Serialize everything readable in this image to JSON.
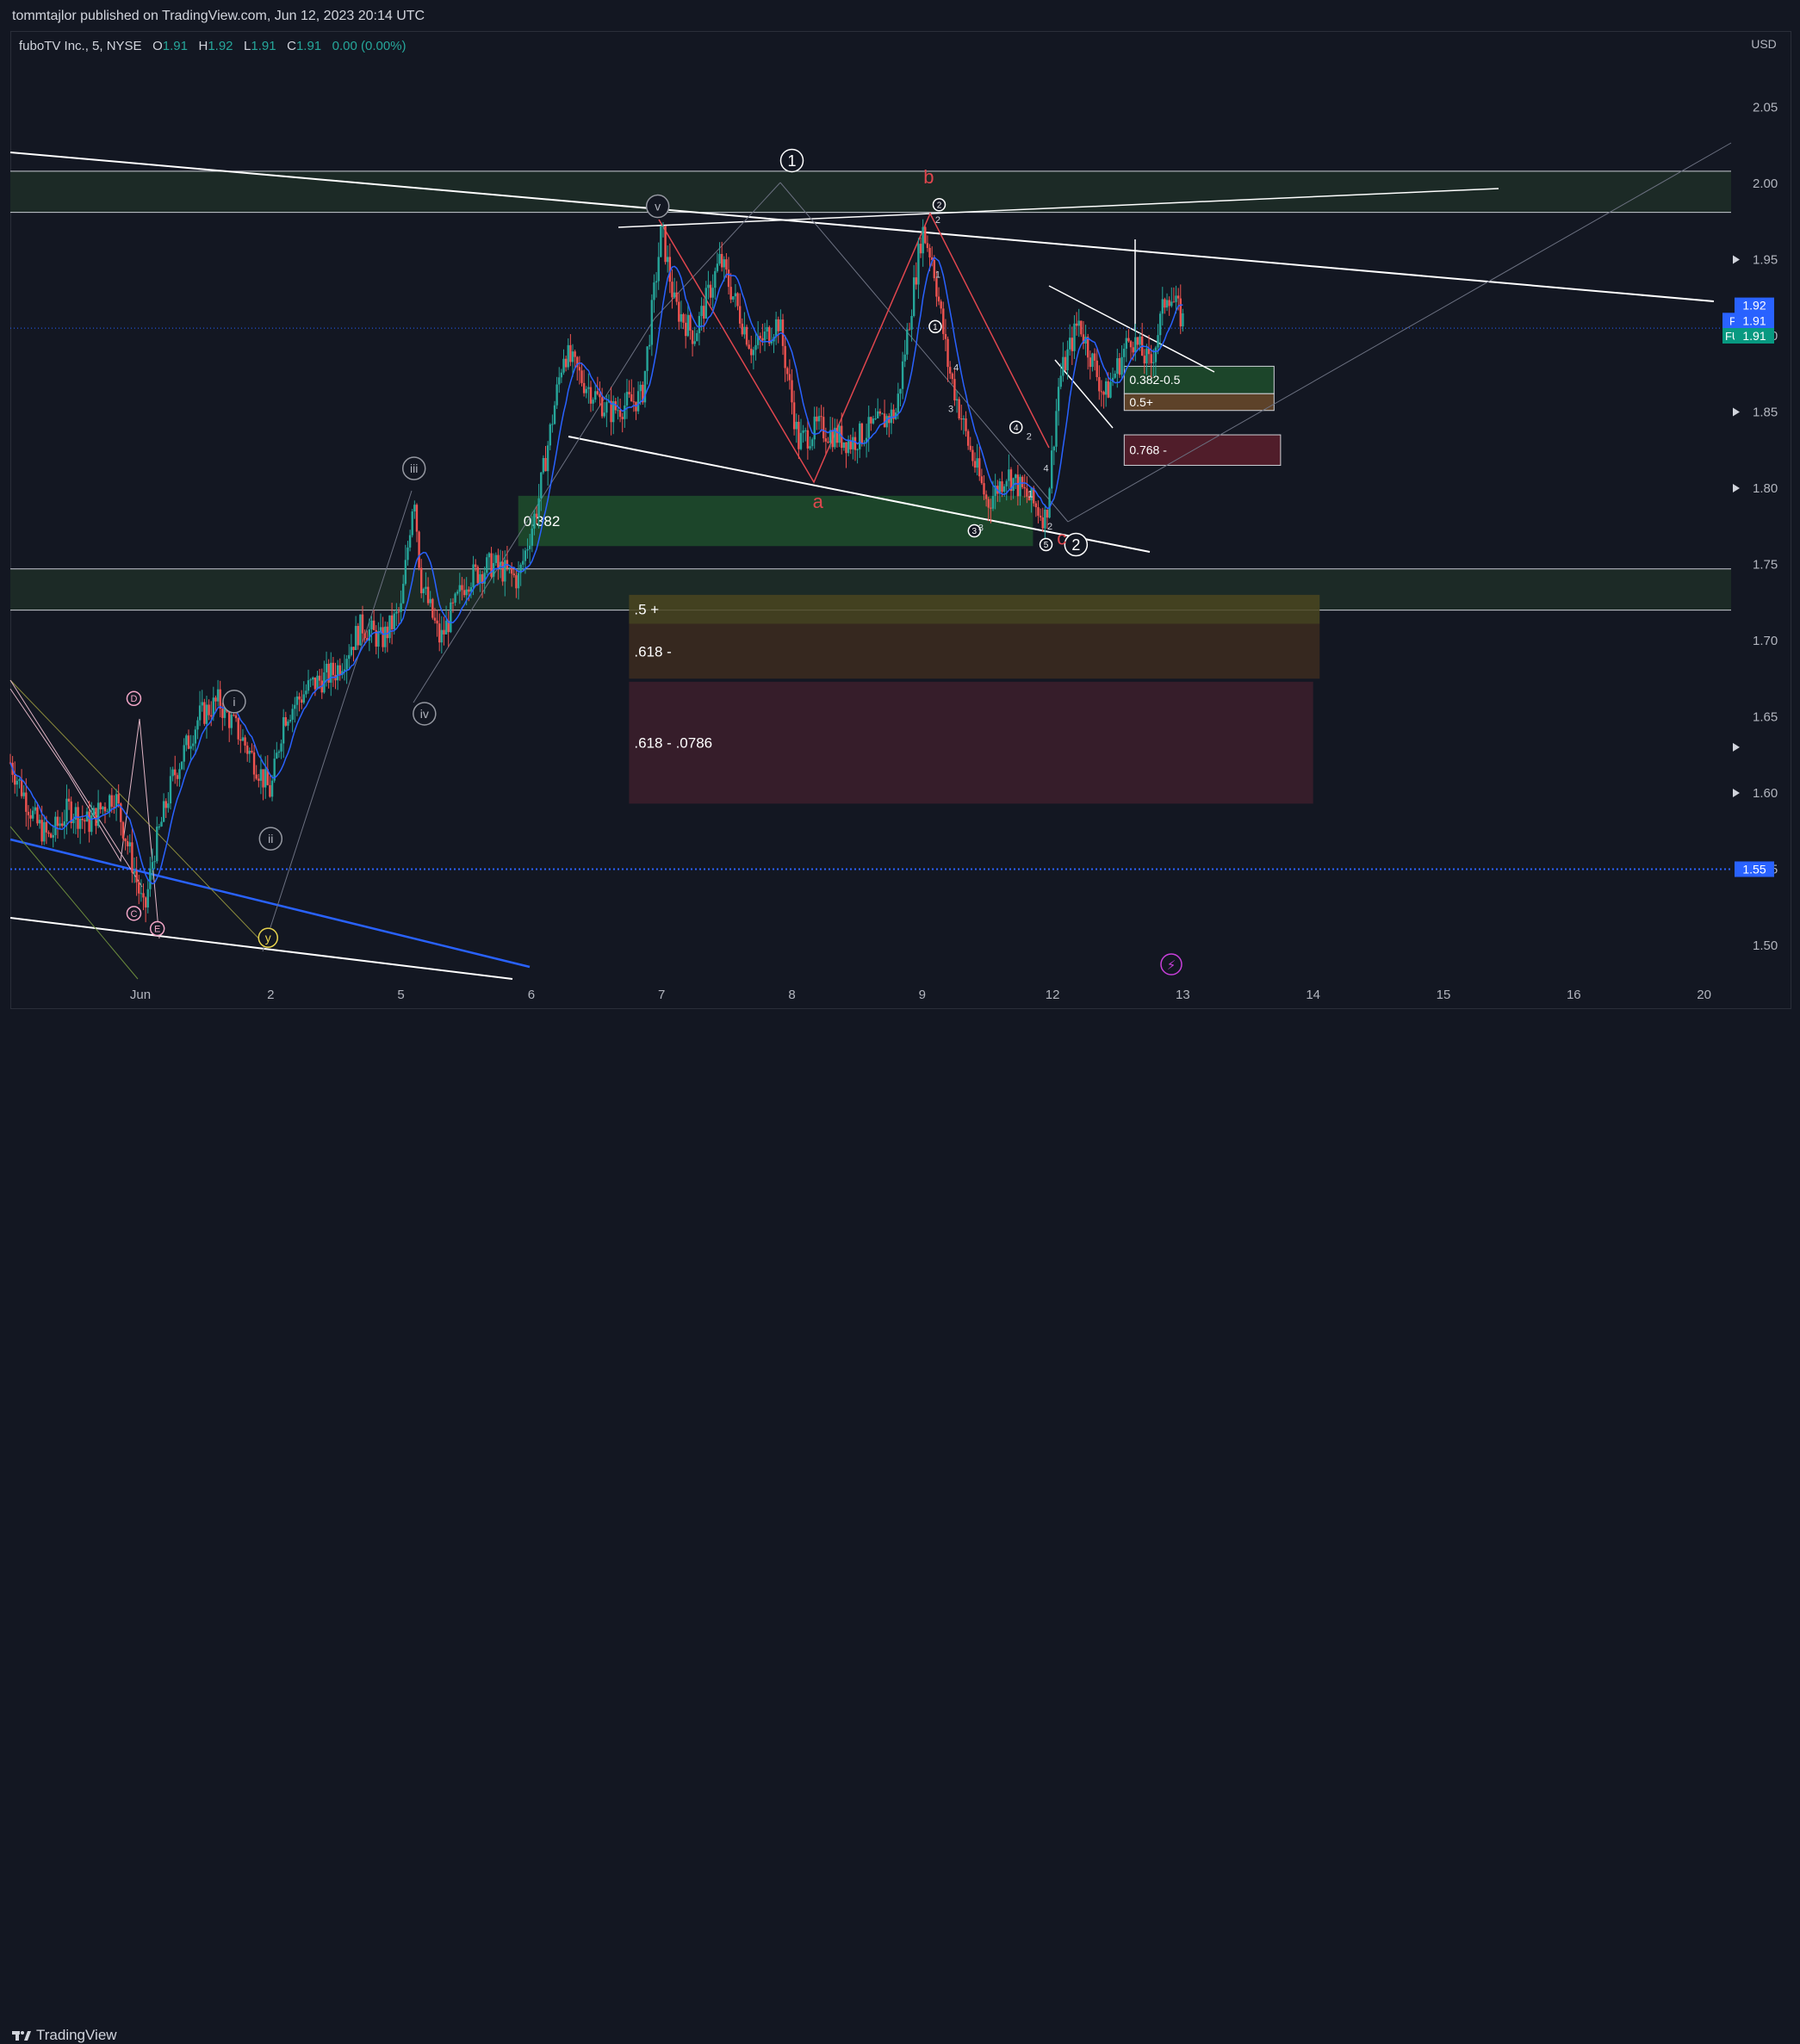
{
  "header": {
    "published": "tommtajlor published on TradingView.com, Jun 12, 2023 20:14 UTC"
  },
  "legend": {
    "symbol": "fuboTV Inc., 5, NYSE",
    "o_label": "O",
    "o": "1.91",
    "h_label": "H",
    "h": "1.92",
    "l_label": "L",
    "l": "1.91",
    "c_label": "C",
    "c": "1.91",
    "change": "0.00 (0.00%)"
  },
  "footer": {
    "brand": "TradingView"
  },
  "chart_data": {
    "type": "candlestick",
    "currency": "USD",
    "ylim": [
      1.47,
      2.1
    ],
    "y_ticks": [
      "2.05",
      "2.00",
      "1.95",
      "1.90",
      "1.85",
      "1.80",
      "1.75",
      "1.70",
      "1.65",
      "1.60",
      "1.55",
      "1.50"
    ],
    "x_ticks": [
      {
        "label": "Jun",
        "t": 1.0
      },
      {
        "label": "2",
        "t": 2.0
      },
      {
        "label": "5",
        "t": 3.0
      },
      {
        "label": "6",
        "t": 4.0
      },
      {
        "label": "7",
        "t": 5.0
      },
      {
        "label": "8",
        "t": 6.0
      },
      {
        "label": "9",
        "t": 7.0
      },
      {
        "label": "12",
        "t": 8.0
      },
      {
        "label": "13",
        "t": 9.0
      },
      {
        "label": "14",
        "t": 10.0
      },
      {
        "label": "15",
        "t": 11.0
      },
      {
        "label": "16",
        "t": 12.0
      },
      {
        "label": "20",
        "t": 13.0
      }
    ],
    "price_tags": [
      {
        "label": "",
        "value": "1.92",
        "price": 1.92,
        "color": "#2962ff"
      },
      {
        "label": "Post",
        "value": "1.91",
        "price": 1.91,
        "color": "#2962ff"
      },
      {
        "label": "FUBO",
        "value": "1.91",
        "price": 1.9,
        "color": "#089981"
      },
      {
        "label": "",
        "value": "1.55",
        "price": 1.55,
        "color": "#2962ff"
      }
    ],
    "price_path": [
      [
        0.0,
        1.62
      ],
      [
        0.1,
        1.6
      ],
      [
        0.2,
        1.58
      ],
      [
        0.3,
        1.57
      ],
      [
        0.45,
        1.59
      ],
      [
        0.6,
        1.58
      ],
      [
        0.8,
        1.6
      ],
      [
        0.95,
        1.55
      ],
      [
        1.03,
        1.52
      ],
      [
        1.1,
        1.56
      ],
      [
        1.25,
        1.61
      ],
      [
        1.45,
        1.65
      ],
      [
        1.6,
        1.66
      ],
      [
        1.75,
        1.64
      ],
      [
        1.88,
        1.62
      ],
      [
        2.0,
        1.6
      ],
      [
        2.1,
        1.65
      ],
      [
        2.3,
        1.67
      ],
      [
        2.5,
        1.68
      ],
      [
        2.7,
        1.71
      ],
      [
        2.85,
        1.7
      ],
      [
        3.0,
        1.72
      ],
      [
        3.1,
        1.8
      ],
      [
        3.15,
        1.74
      ],
      [
        3.3,
        1.7
      ],
      [
        3.5,
        1.74
      ],
      [
        3.7,
        1.75
      ],
      [
        3.9,
        1.74
      ],
      [
        4.05,
        1.79
      ],
      [
        4.25,
        1.89
      ],
      [
        4.4,
        1.87
      ],
      [
        4.6,
        1.85
      ],
      [
        4.85,
        1.86
      ],
      [
        5.0,
        1.97
      ],
      [
        5.1,
        1.92
      ],
      [
        5.25,
        1.9
      ],
      [
        5.45,
        1.95
      ],
      [
        5.7,
        1.89
      ],
      [
        5.9,
        1.91
      ],
      [
        6.05,
        1.83
      ],
      [
        6.2,
        1.84
      ],
      [
        6.45,
        1.83
      ],
      [
        6.8,
        1.85
      ],
      [
        7.0,
        1.97
      ],
      [
        7.08,
        1.95
      ],
      [
        7.2,
        1.88
      ],
      [
        7.35,
        1.83
      ],
      [
        7.5,
        1.79
      ],
      [
        7.65,
        1.81
      ],
      [
        7.85,
        1.79
      ],
      [
        7.95,
        1.78
      ],
      [
        8.05,
        1.87
      ],
      [
        8.2,
        1.91
      ],
      [
        8.4,
        1.86
      ],
      [
        8.6,
        1.9
      ],
      [
        8.75,
        1.88
      ],
      [
        8.88,
        1.93
      ],
      [
        9.0,
        1.91
      ]
    ],
    "zones": [
      {
        "label": "0.382",
        "t0": 3.9,
        "t1": 7.85,
        "p0": 1.795,
        "p1": 1.762,
        "color": "#1e4d2b"
      },
      {
        "label": ".5 +",
        "t0": 4.75,
        "t1": 10.05,
        "p0": 1.73,
        "p1": 1.711,
        "color": "#4a4520"
      },
      {
        "label": ".618 -",
        "t0": 4.75,
        "t1": 10.05,
        "p0": 1.711,
        "p1": 1.675,
        "color": "#3d2b1f"
      },
      {
        "label": ".618 - .0786",
        "t0": 4.75,
        "t1": 10.0,
        "p0": 1.673,
        "p1": 1.593,
        "color": "#3d1f2b"
      },
      {
        "label": "0.382-0.5",
        "t0": 8.55,
        "t1": 9.7,
        "p0": 1.88,
        "p1": 1.862,
        "color": "#1e4d2b"
      },
      {
        "label": "0.5+",
        "t0": 8.55,
        "t1": 9.7,
        "p0": 1.862,
        "p1": 1.851,
        "color": "#6b4a2a"
      },
      {
        "label": "0.768 -",
        "t0": 8.55,
        "t1": 9.75,
        "p0": 1.835,
        "p1": 1.815,
        "color": "#5c1f2b"
      }
    ],
    "wave_labels": [
      {
        "text": "1",
        "t": 6.0,
        "p": 2.015,
        "style": "circle-w"
      },
      {
        "text": "2",
        "t": 8.18,
        "p": 1.763,
        "style": "circle-w"
      },
      {
        "text": "b",
        "t": 7.05,
        "p": 2.0,
        "style": "red"
      },
      {
        "text": "a",
        "t": 6.2,
        "p": 1.787,
        "style": "red"
      },
      {
        "text": "c",
        "t": 8.07,
        "p": 1.763,
        "style": "red"
      },
      {
        "text": "v",
        "t": 4.97,
        "p": 1.985,
        "style": "circle-g"
      },
      {
        "text": "iii",
        "t": 3.1,
        "p": 1.813,
        "style": "circle-g"
      },
      {
        "text": "iv",
        "t": 3.18,
        "p": 1.652,
        "style": "circle-g"
      },
      {
        "text": "i",
        "t": 1.72,
        "p": 1.66,
        "style": "circle-g"
      },
      {
        "text": "ii",
        "t": 2.0,
        "p": 1.57,
        "style": "circle-g"
      },
      {
        "text": "D",
        "t": 0.95,
        "p": 1.662,
        "style": "circle-p"
      },
      {
        "text": "C",
        "t": 0.95,
        "p": 1.521,
        "style": "circle-p"
      },
      {
        "text": "E",
        "t": 1.13,
        "p": 1.511,
        "style": "circle-p"
      },
      {
        "text": "y",
        "t": 1.98,
        "p": 1.505,
        "style": "circle-y"
      },
      {
        "text": "2",
        "t": 7.13,
        "p": 1.986,
        "style": "circle-s"
      },
      {
        "text": "1",
        "t": 7.1,
        "p": 1.906,
        "style": "circle-s"
      },
      {
        "text": "4",
        "t": 7.72,
        "p": 1.84,
        "style": "circle-s"
      },
      {
        "text": "3",
        "t": 7.4,
        "p": 1.772,
        "style": "circle-s"
      },
      {
        "text": "5",
        "t": 7.95,
        "p": 1.763,
        "style": "circle-s"
      }
    ],
    "small_labels": [
      {
        "text": "2",
        "t": 7.12,
        "p": 1.974
      },
      {
        "text": "1",
        "t": 7.12,
        "p": 1.938
      },
      {
        "text": "4",
        "t": 7.26,
        "p": 1.877
      },
      {
        "text": "3",
        "t": 7.22,
        "p": 1.85
      },
      {
        "text": "2",
        "t": 7.82,
        "p": 1.832
      },
      {
        "text": "4",
        "t": 7.95,
        "p": 1.811
      },
      {
        "text": "1",
        "t": 7.83,
        "p": 1.794
      },
      {
        "text": "2",
        "t": 7.98,
        "p": 1.773
      },
      {
        "text": "3",
        "t": 7.45,
        "p": 1.772
      }
    ]
  }
}
